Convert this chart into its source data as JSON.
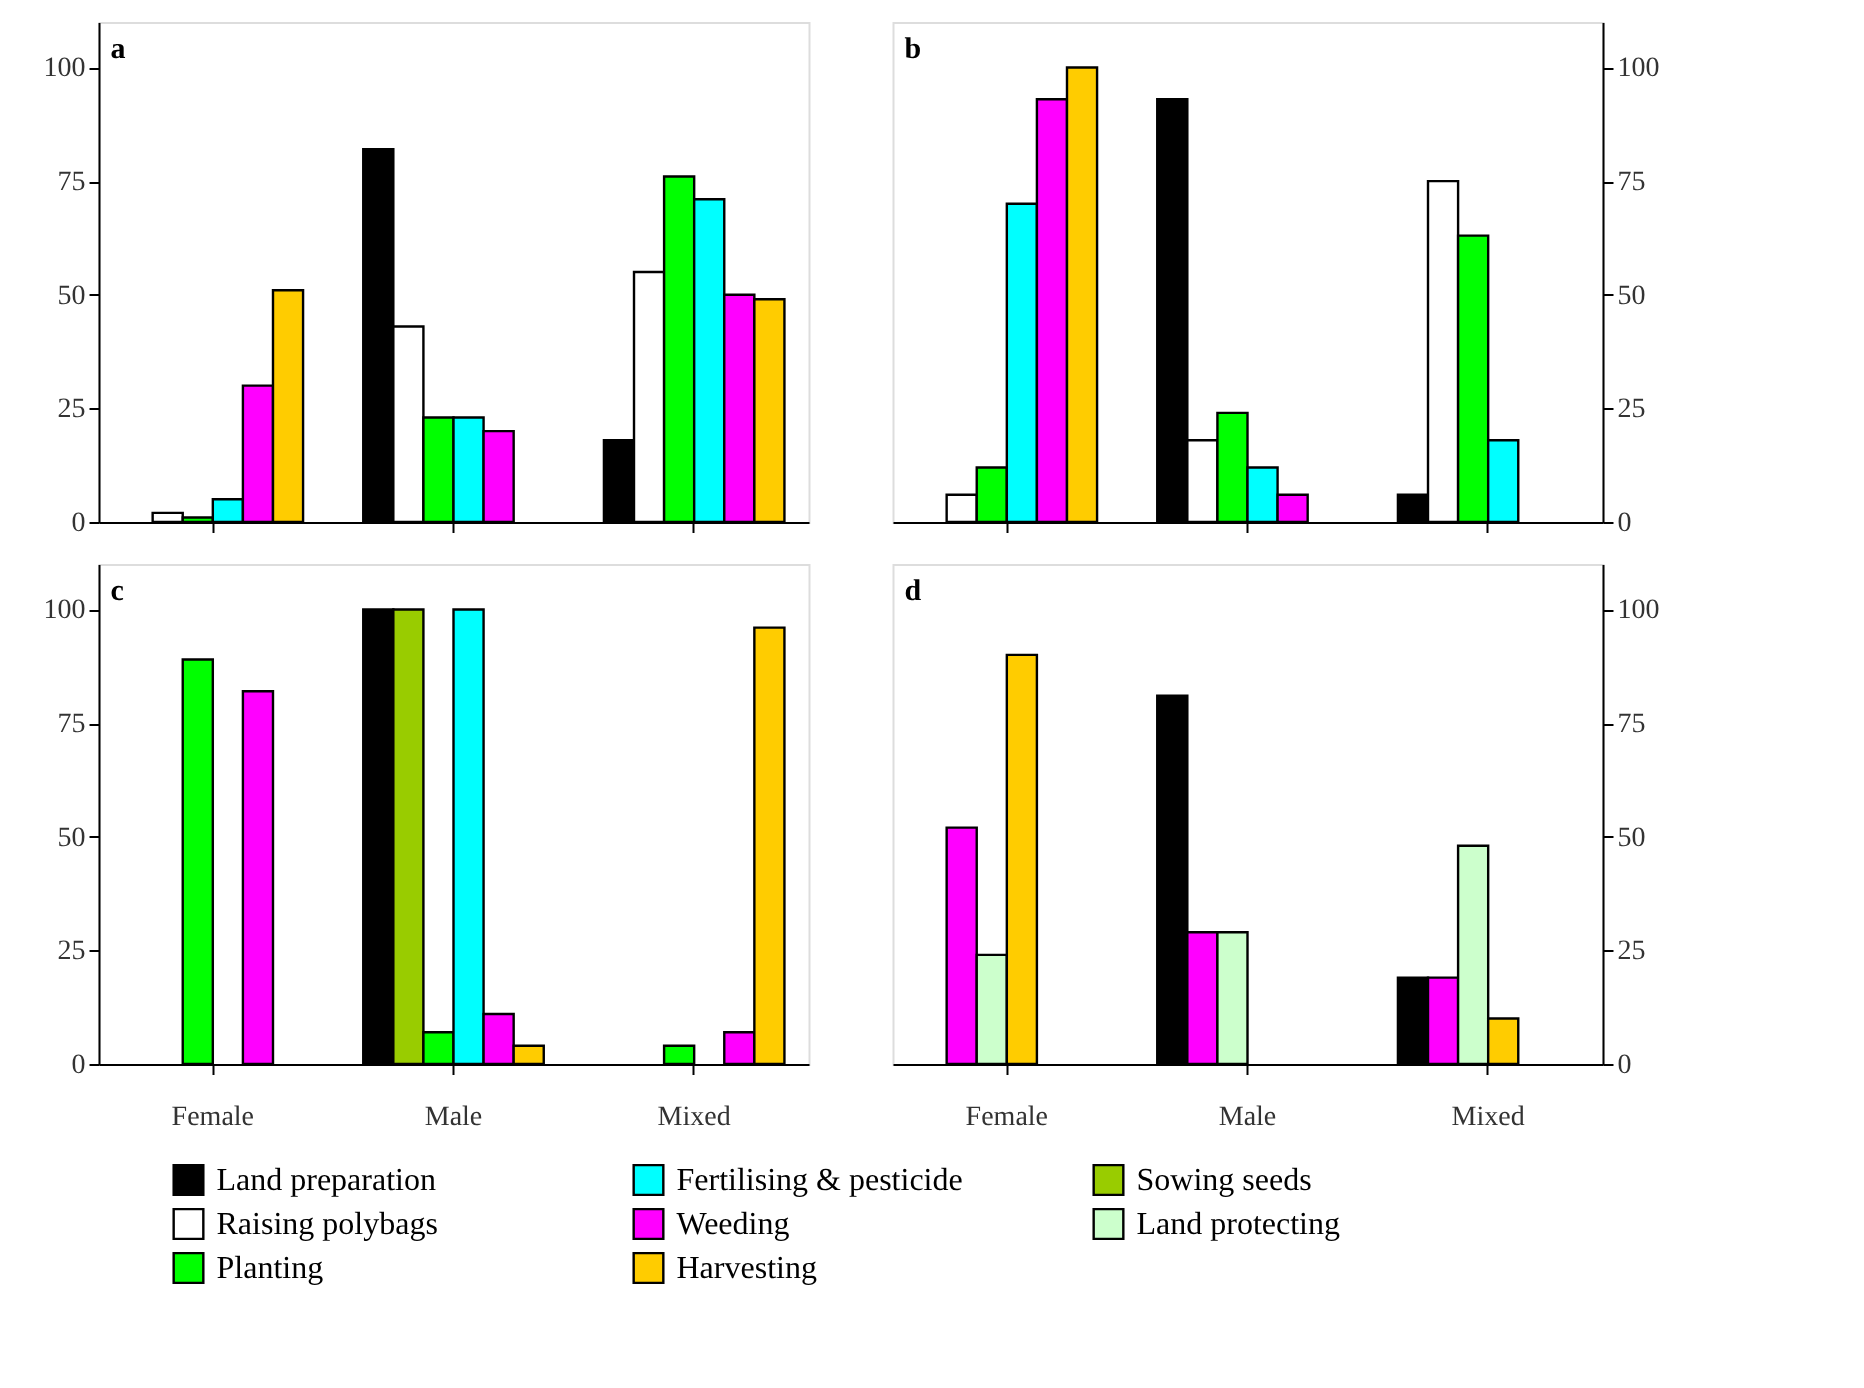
{
  "chart_data": [
    {
      "type": "bar",
      "title": "a",
      "categories": [
        "Female",
        "Male",
        "Mixed"
      ],
      "ylim": [
        0,
        110
      ],
      "yticks": [
        0,
        25,
        50,
        75,
        100
      ],
      "grid": false,
      "tick_labels": "y",
      "legend": "bottom",
      "series": [
        {
          "name": "Land preparation",
          "color": "#000000",
          "values": [
            null,
            82,
            18
          ]
        },
        {
          "name": "Raising polybags",
          "color": "#ffffff",
          "values": [
            2,
            43,
            55
          ]
        },
        {
          "name": "Planting",
          "color": "#00ff00",
          "values": [
            1,
            23,
            76
          ]
        },
        {
          "name": "Fertilising & pesticide",
          "color": "#00ffff",
          "values": [
            5,
            23,
            71
          ]
        },
        {
          "name": "Weeding",
          "color": "#ff00ff",
          "values": [
            30,
            20,
            50
          ]
        },
        {
          "name": "Harvesting",
          "color": "#ffcc00",
          "values": [
            51,
            null,
            49
          ]
        }
      ]
    },
    {
      "type": "bar",
      "title": "b",
      "categories": [
        "Female",
        "Male",
        "Mixed"
      ],
      "y2lim": [
        0,
        110
      ],
      "y2ticks": [
        0,
        25,
        50,
        75,
        100
      ],
      "grid": false,
      "tick_labels": "y",
      "legend": "bottom",
      "series": [
        {
          "name": "Land preparation",
          "color": "#000000",
          "values": [
            null,
            93,
            6
          ],
          "axis": "y2"
        },
        {
          "name": "Raising polybags",
          "color": "#ffffff",
          "values": [
            6,
            18,
            75
          ],
          "axis": "y2"
        },
        {
          "name": "Planting",
          "color": "#00ff00",
          "values": [
            12,
            24,
            63
          ],
          "axis": "y2"
        },
        {
          "name": "Fertilising & pesticide",
          "color": "#00ffff",
          "values": [
            70,
            12,
            18
          ],
          "axis": "y2"
        },
        {
          "name": "Weeding",
          "color": "#ff00ff",
          "values": [
            93,
            6,
            null
          ],
          "axis": "y2"
        },
        {
          "name": "Harvesting",
          "color": "#ffcc00",
          "values": [
            100,
            null,
            null
          ],
          "axis": "y2"
        }
      ]
    },
    {
      "type": "bar",
      "title": "c",
      "categories": [
        "Female",
        "Male",
        "Mixed"
      ],
      "ylim": [
        0,
        110
      ],
      "yticks": [
        0,
        25,
        50,
        75,
        100
      ],
      "grid": false,
      "legend": "bottom",
      "series": [
        {
          "name": "Land preparation",
          "color": "#000000",
          "values": [
            null,
            100,
            null
          ]
        },
        {
          "name": "Sowing seeds",
          "color": "#99cc00",
          "values": [
            null,
            100,
            null
          ]
        },
        {
          "name": "Planting",
          "color": "#00ff00",
          "values": [
            89,
            7,
            4
          ]
        },
        {
          "name": "Fertilising & pesticide",
          "color": "#00ffff",
          "values": [
            null,
            100,
            null
          ]
        },
        {
          "name": "Weeding",
          "color": "#ff00ff",
          "values": [
            82,
            11,
            7
          ]
        },
        {
          "name": "Harvesting",
          "color": "#ffcc00",
          "values": [
            null,
            4,
            96
          ]
        }
      ]
    },
    {
      "type": "bar",
      "title": "d",
      "categories": [
        "Female",
        "Male",
        "Mixed"
      ],
      "y2lim": [
        0,
        110
      ],
      "y2ticks": [
        0,
        25,
        50,
        75,
        100
      ],
      "grid": false,
      "legend": "bottom",
      "series": [
        {
          "name": "Land preparation",
          "color": "#000000",
          "values": [
            null,
            81,
            19
          ],
          "axis": "y2"
        },
        {
          "name": "Weeding",
          "color": "#ff00ff",
          "values": [
            52,
            29,
            19
          ],
          "axis": "y2"
        },
        {
          "name": "Land protecting",
          "color": "#ccffcc",
          "values": [
            24,
            29,
            48
          ],
          "axis": "y2"
        },
        {
          "name": "Harvesting",
          "color": "#ffcc00",
          "values": [
            90,
            null,
            10
          ],
          "axis": "y2"
        }
      ]
    }
  ]
}
